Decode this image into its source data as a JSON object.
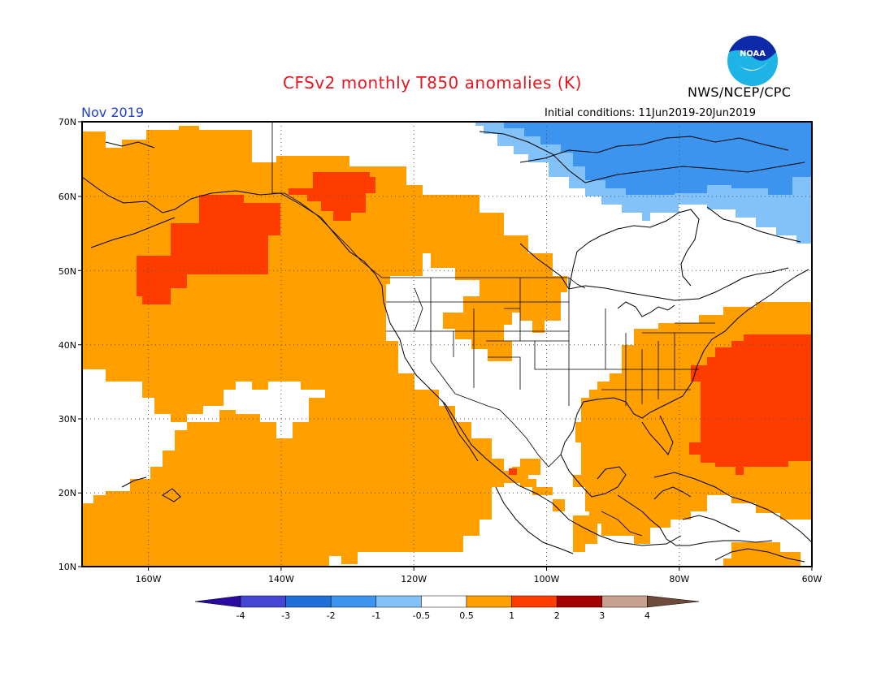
{
  "header": {
    "title": "CFSv2 monthly T850 anomalies (K)",
    "agency": "NWS/NCEP/CPC",
    "logo_text": "NOAA",
    "month": "Nov 2019",
    "initial_conditions": "Initial conditions: 11Jun2019-20Jun2019"
  },
  "map": {
    "projection": "equirectangular",
    "lon_range": [
      -170,
      -60
    ],
    "lat_range": [
      10,
      70
    ],
    "lat_labels": [
      "10N",
      "20N",
      "30N",
      "40N",
      "50N",
      "60N",
      "70N"
    ],
    "lon_labels": [
      "160W",
      "140W",
      "120W",
      "100W",
      "80W",
      "60W"
    ],
    "grid": "dotted"
  },
  "colorbar": {
    "labels": [
      "-4",
      "-3",
      "-2",
      "-1",
      "-0.5",
      "0.5",
      "1",
      "2",
      "3",
      "4"
    ],
    "colors": [
      "#2a0aa0",
      "#4646d6",
      "#1e6fd8",
      "#3c94ee",
      "#82c2f8",
      "#ffffff",
      "#ff9f00",
      "#ff3c00",
      "#a40000",
      "#c8a090",
      "#6e4a3a"
    ]
  },
  "colors": {
    "anom_0_5_1": "#ff9f00",
    "anom_1_2": "#ff3c00",
    "anom_neg_0_5_1": "#82c2f8",
    "anom_neg_1_2": "#3c94ee",
    "title_red": "#e8141e",
    "month_blue": "#1f3fd0"
  }
}
